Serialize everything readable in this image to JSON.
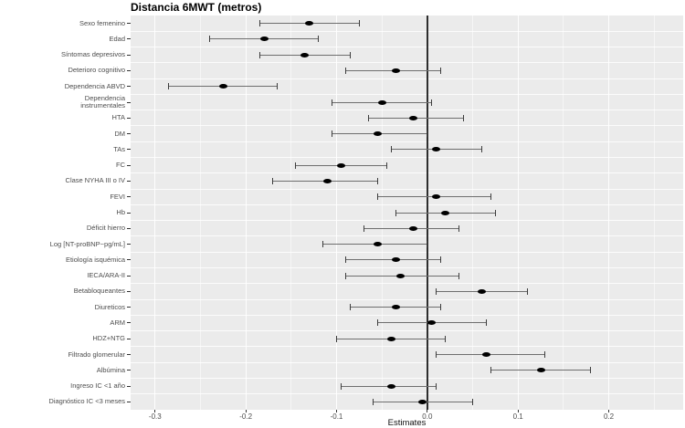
{
  "chart_data": {
    "type": "scatter",
    "subtype": "forest-plot-with-error-bars",
    "title": "Distancia 6MWT (metros)",
    "xlabel": "Estimates",
    "ylabel": "",
    "xlim": [
      -0.327,
      0.282
    ],
    "xticks": [
      -0.3,
      -0.2,
      -0.1,
      0.0,
      0.1,
      0.2
    ],
    "xtick_labels": [
      "-0.3",
      "-0.2",
      "-0.1",
      "0.0",
      "0.1",
      "0.2"
    ],
    "xticks_minor": [
      -0.25,
      -0.15,
      -0.05,
      0.05,
      0.15,
      0.25
    ],
    "zero_line": 0,
    "grid": "on",
    "legend": "none",
    "rows": [
      {
        "label": "Sexo femenino",
        "estimate": -0.13,
        "ci_low": -0.185,
        "ci_high": -0.075
      },
      {
        "label": "Edad",
        "estimate": -0.18,
        "ci_low": -0.24,
        "ci_high": -0.12
      },
      {
        "label": "Síntomas depresivos",
        "estimate": -0.135,
        "ci_low": -0.185,
        "ci_high": -0.085
      },
      {
        "label": "Deterioro cognitivo",
        "estimate": -0.035,
        "ci_low": -0.09,
        "ci_high": 0.015
      },
      {
        "label": "Dependencia ABVD",
        "estimate": -0.225,
        "ci_low": -0.285,
        "ci_high": -0.165
      },
      {
        "label": "Dependencia\ninstrumentales",
        "estimate": -0.05,
        "ci_low": -0.105,
        "ci_high": 0.005
      },
      {
        "label": "HTA",
        "estimate": -0.015,
        "ci_low": -0.065,
        "ci_high": 0.04
      },
      {
        "label": "DM",
        "estimate": -0.055,
        "ci_low": -0.105,
        "ci_high": 0.0
      },
      {
        "label": "TAs",
        "estimate": 0.01,
        "ci_low": -0.04,
        "ci_high": 0.06
      },
      {
        "label": "FC",
        "estimate": -0.095,
        "ci_low": -0.145,
        "ci_high": -0.045
      },
      {
        "label": "Clase NYHA III o IV",
        "estimate": -0.11,
        "ci_low": -0.17,
        "ci_high": -0.055
      },
      {
        "label": "FEVI",
        "estimate": 0.01,
        "ci_low": -0.055,
        "ci_high": 0.07
      },
      {
        "label": "Hb",
        "estimate": 0.02,
        "ci_low": -0.035,
        "ci_high": 0.075
      },
      {
        "label": "Déficit hierro",
        "estimate": -0.015,
        "ci_low": -0.07,
        "ci_high": 0.035
      },
      {
        "label": "Log [NT-proBNP~pg/mL]",
        "estimate": -0.055,
        "ci_low": -0.115,
        "ci_high": 0.0
      },
      {
        "label": "Etiología isquémica",
        "estimate": -0.035,
        "ci_low": -0.09,
        "ci_high": 0.015
      },
      {
        "label": "IECA/ARA-II",
        "estimate": -0.03,
        "ci_low": -0.09,
        "ci_high": 0.035
      },
      {
        "label": "Betabloqueantes",
        "estimate": 0.06,
        "ci_low": 0.01,
        "ci_high": 0.11
      },
      {
        "label": "Diureticos",
        "estimate": -0.035,
        "ci_low": -0.085,
        "ci_high": 0.015
      },
      {
        "label": "ARM",
        "estimate": 0.005,
        "ci_low": -0.055,
        "ci_high": 0.065
      },
      {
        "label": "HDZ+NTG",
        "estimate": -0.04,
        "ci_low": -0.1,
        "ci_high": 0.02
      },
      {
        "label": "Filtrado glomerular",
        "estimate": 0.065,
        "ci_low": 0.01,
        "ci_high": 0.13
      },
      {
        "label": "Albúmina",
        "estimate": 0.125,
        "ci_low": 0.07,
        "ci_high": 0.18
      },
      {
        "label": "Ingreso IC <1 año",
        "estimate": -0.04,
        "ci_low": -0.095,
        "ci_high": 0.01
      },
      {
        "label": "Diagnóstico IC <3 meses",
        "estimate": -0.005,
        "ci_low": -0.06,
        "ci_high": 0.05
      }
    ],
    "colors": {
      "panel_bg": "#ebebeb",
      "grid_major": "#ffffff",
      "grid_minor": "#ffffff",
      "point": "#000000",
      "ci_line": "#6e6e6e",
      "ci_cap": "#3c3c3c",
      "zero_line": "#2e2e2e",
      "axis_text": "#4d4d4d",
      "axis_tick": "#333333",
      "title": "#000000"
    }
  }
}
